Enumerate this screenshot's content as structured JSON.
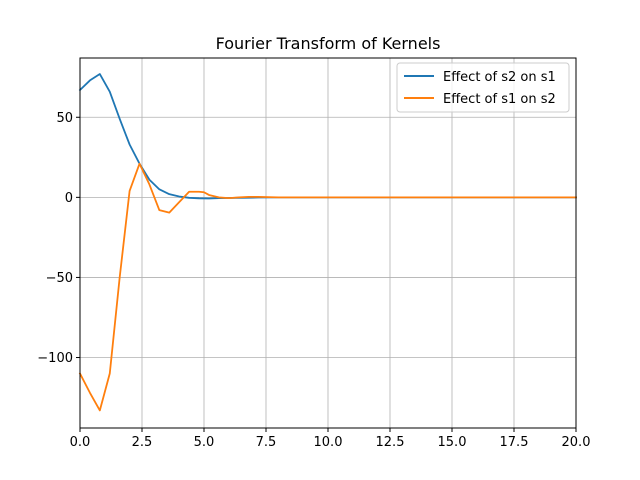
{
  "chart_data": {
    "type": "line",
    "title": "Fourier Transform of Kernels",
    "xlabel": "",
    "ylabel": "",
    "xlim": [
      0,
      20
    ],
    "ylim": [
      -144,
      87
    ],
    "x_ticks": [
      0,
      2.5,
      5,
      7.5,
      10,
      12.5,
      15,
      17.5,
      20
    ],
    "x_tick_labels": [
      "0.0",
      "2.5",
      "5.0",
      "7.5",
      "10.0",
      "12.5",
      "15.0",
      "17.5",
      "20.0"
    ],
    "y_ticks": [
      -100,
      -50,
      0,
      50
    ],
    "y_tick_labels": [
      "−100",
      "−50",
      "0",
      "50"
    ],
    "grid": true,
    "legend_position": "top-right",
    "series": [
      {
        "name": "Effect of s2 on s1",
        "color": "#1f77b4",
        "x": [
          0,
          0.4,
          0.8,
          1.2,
          1.6,
          2.0,
          2.4,
          2.8,
          3.2,
          3.6,
          4.0,
          4.4,
          4.8,
          5.2,
          5.6,
          6.0,
          6.4,
          6.8,
          7.2,
          8,
          10,
          12.5,
          15,
          17.5,
          20
        ],
        "y": [
          67,
          73,
          77,
          66,
          49,
          33,
          21,
          11,
          5,
          2,
          0.5,
          -0.3,
          -0.6,
          -0.7,
          -0.5,
          -0.4,
          -0.3,
          -0.2,
          -0.1,
          0,
          0,
          0,
          0,
          0,
          0
        ]
      },
      {
        "name": "Effect of s1 on s2",
        "color": "#ff7f0e",
        "x": [
          0,
          0.4,
          0.8,
          1.2,
          1.6,
          2.0,
          2.4,
          2.8,
          3.2,
          3.6,
          4.0,
          4.4,
          4.8,
          5.0,
          5.2,
          5.6,
          6.0,
          6.4,
          6.8,
          7.2,
          8,
          10,
          12.5,
          15,
          17.5,
          20
        ],
        "y": [
          -110,
          -122,
          -133,
          -110,
          -50,
          4,
          21,
          8,
          -8,
          -9.5,
          -3,
          3.5,
          3.5,
          3.2,
          1.5,
          0,
          -0.5,
          0,
          0.3,
          0.3,
          0,
          0,
          0,
          0,
          0,
          0
        ]
      }
    ]
  }
}
